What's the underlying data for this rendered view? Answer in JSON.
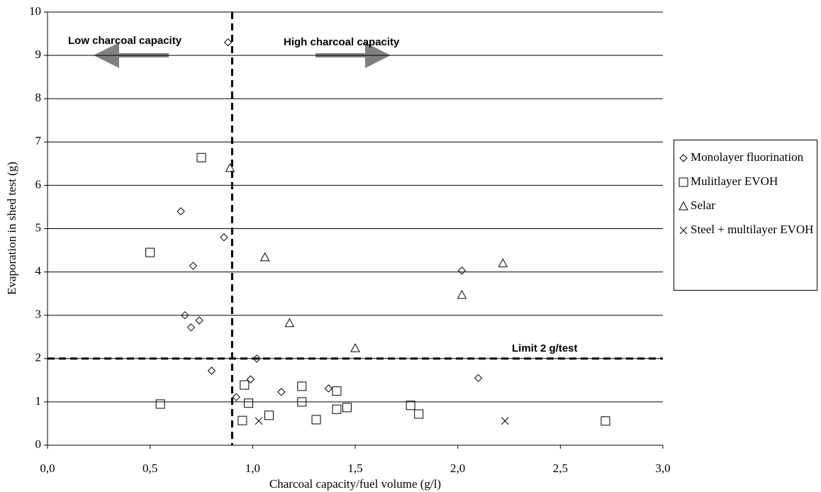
{
  "chart_data": {
    "type": "scatter",
    "x_label": "Charcoal capacity/fuel volume (g/l)",
    "y_label": "Evaporation in shed test (g)",
    "xlim": [
      0,
      3
    ],
    "ylim": [
      0,
      10
    ],
    "xticks": [
      {
        "value": 0,
        "label": "0,0"
      },
      {
        "value": 0.5,
        "label": "0,5"
      },
      {
        "value": 1,
        "label": "1,0"
      },
      {
        "value": 1.5,
        "label": "1,5"
      },
      {
        "value": 2,
        "label": "2,0"
      },
      {
        "value": 2.5,
        "label": "2,5"
      },
      {
        "value": 3,
        "label": "3,0"
      }
    ],
    "yticks": [
      0,
      1,
      2,
      3,
      4,
      5,
      6,
      7,
      8,
      9,
      10
    ],
    "grid": true,
    "legend": "right",
    "reference_lines": {
      "x": 0.9,
      "y": 2
    },
    "annotations": [
      "Low charcoal capacity",
      "High charcoal capacity",
      "Limit 2 g/test"
    ],
    "series": [
      {
        "name": "Monolayer fluorination",
        "marker": "diamond",
        "color": "#000000",
        "x": [
          0.88,
          0.65,
          0.86,
          0.71,
          0.67,
          0.7,
          0.74,
          0.8,
          0.92,
          0.99,
          1.02,
          1.14,
          1.37,
          2.02,
          2.1
        ],
        "values": [
          9.3,
          5.4,
          4.8,
          4.14,
          3.0,
          2.72,
          2.88,
          1.72,
          1.11,
          1.52,
          2.0,
          1.23,
          1.31,
          4.03,
          1.55
        ]
      },
      {
        "name": "Mulitlayer EVOH",
        "marker": "square",
        "color": "#000000",
        "x": [
          0.75,
          0.5,
          0.55,
          0.96,
          0.98,
          0.95,
          1.08,
          1.24,
          1.24,
          1.31,
          1.41,
          1.41,
          1.46,
          1.77,
          1.81,
          2.72
        ],
        "values": [
          6.64,
          4.45,
          0.95,
          1.39,
          0.97,
          0.57,
          0.69,
          1.0,
          1.36,
          0.59,
          1.25,
          0.83,
          0.87,
          0.92,
          0.72,
          0.56
        ]
      },
      {
        "name": "Selar",
        "marker": "triangle",
        "color": "#000000",
        "x": [
          0.89,
          1.06,
          1.18,
          1.5,
          2.02,
          2.22
        ],
        "values": [
          6.4,
          4.34,
          2.82,
          2.24,
          3.47,
          4.2
        ]
      },
      {
        "name": "Steel + multilayer EVOH",
        "marker": "cross",
        "color": "#000000",
        "x": [
          1.03,
          2.23
        ],
        "values": [
          0.56,
          0.56
        ]
      }
    ]
  }
}
